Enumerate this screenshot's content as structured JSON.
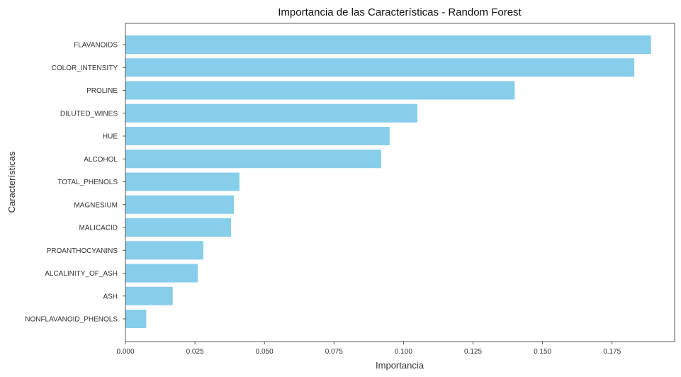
{
  "chart_data": {
    "type": "bar",
    "orientation": "horizontal",
    "title": "Importancia de las Características - Random Forest",
    "xlabel": "Importancia",
    "ylabel": "Características",
    "xlim": [
      0,
      0.1975
    ],
    "xticks": [
      "0.000",
      "0.025",
      "0.050",
      "0.075",
      "0.100",
      "0.125",
      "0.150",
      "0.175"
    ],
    "xtick_values": [
      0,
      0.025,
      0.05,
      0.075,
      0.1,
      0.125,
      0.15,
      0.175
    ],
    "categories": [
      "FLAVANOIDS",
      "COLOR_INTENSITY",
      "PROLINE",
      "DILUTED_WINES",
      "HUE",
      "ALCOHOL",
      "TOTAL_PHENOLS",
      "MAGNESIUM",
      "MALICACID",
      "PROANTHOCYANINS",
      "ALCALINITY_OF_ASH",
      "ASH",
      "NONFLAVANOID_PHENOLS"
    ],
    "values": [
      0.189,
      0.183,
      0.14,
      0.105,
      0.095,
      0.092,
      0.041,
      0.039,
      0.038,
      0.028,
      0.026,
      0.017,
      0.0075
    ],
    "bar_color": "#87ceeb",
    "grid": false,
    "legend": false
  }
}
